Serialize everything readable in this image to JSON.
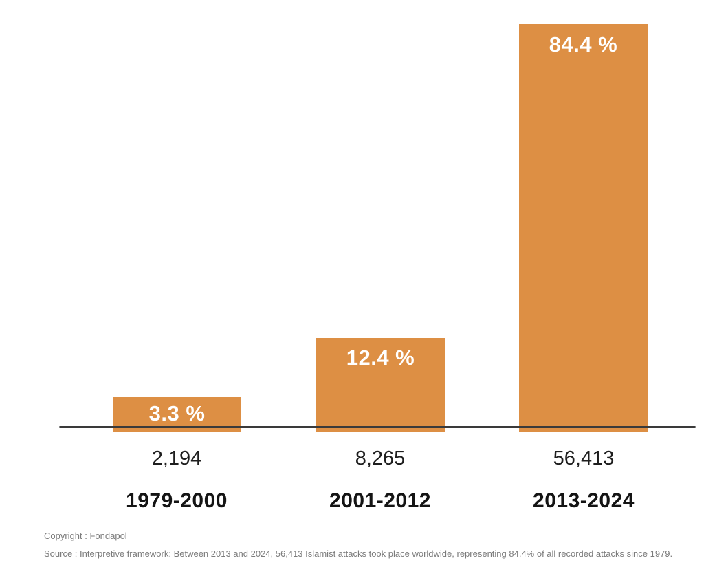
{
  "chart_data": {
    "type": "bar",
    "title": "",
    "categories": [
      "1979-2000",
      "2001-2012",
      "2013-2024"
    ],
    "values": [
      2194,
      8265,
      56413
    ],
    "value_labels": [
      "2,194",
      "8,265",
      "56,413"
    ],
    "percentages": [
      3.3,
      12.4,
      84.4
    ],
    "percent_labels": [
      "3.3 %",
      "12.4 %",
      "84.4 %"
    ],
    "ylim": [
      0,
      100
    ],
    "grid": false,
    "legend_position": "none",
    "bar_color": "#DD8F44",
    "axis_color": "#3A3A3A",
    "bar_label_color": "#FFFFFF",
    "text_color": "#1E1E1E",
    "footer_text_color": "#7B7B7B"
  },
  "footer": {
    "copyright": "Copyright : Fondapol",
    "source": "Source : Interpretive framework: Between 2013 and 2024, 56,413 Islamist attacks took place worldwide, representing 84.4% of all recorded attacks since 1979."
  }
}
